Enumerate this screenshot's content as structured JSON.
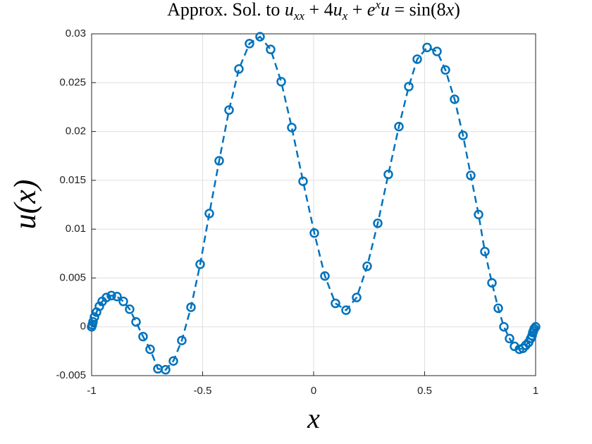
{
  "chart_data": {
    "type": "line",
    "title": [
      "Approx. Sol. to ",
      "u",
      "xx",
      " + 4",
      "u",
      "x",
      " + ",
      "e",
      "x",
      "u",
      " = sin(8",
      "x",
      ")"
    ],
    "xlabel": "x",
    "ylabel": "u(x)",
    "x": [
      -1,
      -0.9968,
      -0.9937,
      -0.9873,
      -0.9778,
      -0.9651,
      -0.9524,
      -0.9333,
      -0.9111,
      -0.8857,
      -0.8571,
      -0.8286,
      -0.8,
      -0.7683,
      -0.7365,
      -0.7016,
      -0.6667,
      -0.6317,
      -0.5937,
      -0.5524,
      -0.5111,
      -0.4698,
      -0.4254,
      -0.381,
      -0.3365,
      -0.2889,
      -0.2413,
      -0.1937,
      -0.146,
      -0.0984,
      -0.0476,
      0.0032,
      0.0508,
      0.0984,
      0.146,
      0.1937,
      0.2413,
      0.2889,
      0.3365,
      0.3841,
      0.4286,
      0.4667,
      0.5111,
      0.5556,
      0.5937,
      0.6349,
      0.673,
      0.7079,
      0.7429,
      0.7714,
      0.8032,
      0.8317,
      0.8571,
      0.8825,
      0.9048,
      0.927,
      0.9429,
      0.9556,
      0.9683,
      0.9778,
      0.9841,
      0.9873,
      0.9905,
      0.9937,
      1
    ],
    "series": [
      {
        "color": "#0072bd",
        "values": [
          0,
          0.0002,
          0.0005,
          0.001,
          0.0015,
          0.0021,
          0.0026,
          0.003,
          0.0032,
          0.0031,
          0.0026,
          0.0018,
          0.0005,
          -0.001,
          -0.0023,
          -0.0043,
          -0.0044,
          -0.0035,
          -0.0014,
          0.002,
          0.0064,
          0.0116,
          0.017,
          0.0222,
          0.0264,
          0.029,
          0.0297,
          0.0284,
          0.0251,
          0.0204,
          0.0149,
          0.0096,
          0.0052,
          0.0024,
          0.0017,
          0.003,
          0.0062,
          0.0106,
          0.0156,
          0.0205,
          0.0246,
          0.0274,
          0.0286,
          0.0282,
          0.0263,
          0.0233,
          0.0196,
          0.0155,
          0.0115,
          0.0077,
          0.0045,
          0.0019,
          0,
          -0.0012,
          -0.002,
          -0.0023,
          -0.0022,
          -0.0019,
          -0.0016,
          -0.0012,
          -0.0009,
          -0.0006,
          -0.0004,
          -0.0002,
          0
        ]
      }
    ],
    "xlim": [
      -1,
      1
    ],
    "xticks": [
      -1,
      -0.5,
      0,
      0.5,
      1
    ],
    "ylim": [
      -0.005,
      0.03
    ],
    "yticks": [
      -0.005,
      0,
      0.005,
      0.01,
      0.015,
      0.02,
      0.025,
      0.03
    ],
    "grid": true
  }
}
